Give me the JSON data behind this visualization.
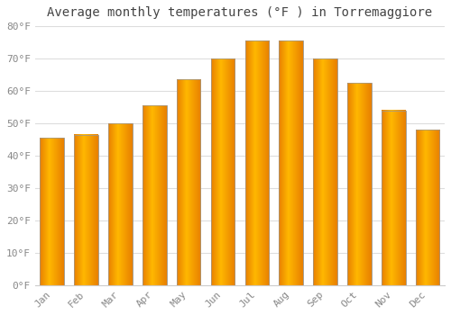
{
  "title": "Average monthly temperatures (°F ) in Torremaggiore",
  "months": [
    "Jan",
    "Feb",
    "Mar",
    "Apr",
    "May",
    "Jun",
    "Jul",
    "Aug",
    "Sep",
    "Oct",
    "Nov",
    "Dec"
  ],
  "values": [
    45.5,
    46.5,
    50.0,
    55.5,
    63.5,
    70.0,
    75.5,
    75.5,
    70.0,
    62.5,
    54.0,
    48.0
  ],
  "bar_color_dark": "#E88000",
  "bar_color_mid": "#FFB800",
  "bar_color_light": "#FFD040",
  "ylim": [
    0,
    80
  ],
  "yticks": [
    0,
    10,
    20,
    30,
    40,
    50,
    60,
    70,
    80
  ],
  "ytick_labels": [
    "0°F",
    "10°F",
    "20°F",
    "30°F",
    "40°F",
    "50°F",
    "60°F",
    "70°F",
    "80°F"
  ],
  "plot_bg_color": "#FFFFFF",
  "fig_bg_color": "#FFFFFF",
  "grid_color": "#DDDDDD",
  "title_fontsize": 10,
  "tick_fontsize": 8,
  "bar_edge_color": "#999999"
}
